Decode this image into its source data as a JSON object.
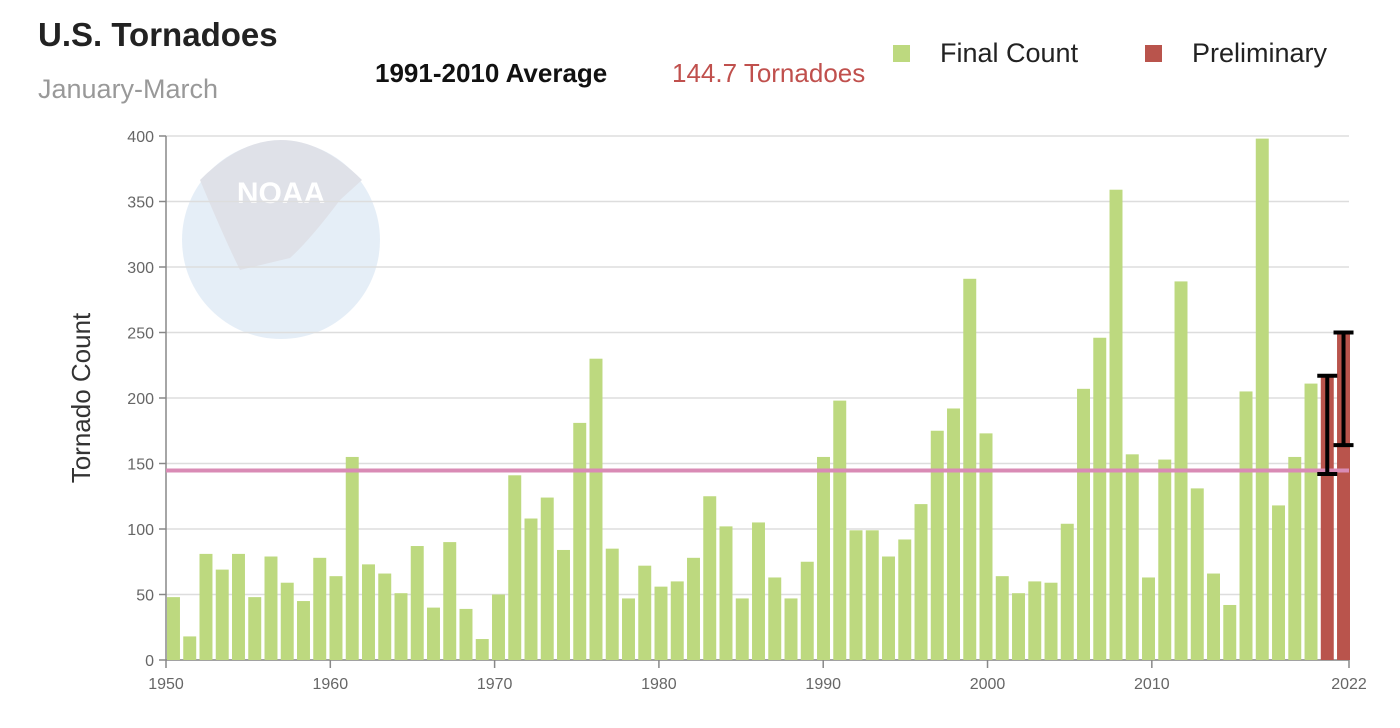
{
  "chart_data": {
    "type": "bar",
    "title": "U.S. Tornadoes",
    "subtitle": "January-March",
    "ylabel": "Tornado Count",
    "xlabel": "",
    "ylim": [
      0,
      400
    ],
    "yticks": [
      0,
      50,
      100,
      150,
      200,
      250,
      300,
      350,
      400
    ],
    "xticks": [
      "1950",
      "1960",
      "1970",
      "1980",
      "1990",
      "2000",
      "2010",
      "2022"
    ],
    "grid": true,
    "legend_placement": "top-right",
    "reference_line": {
      "label": "1991-2010 Average",
      "value": 144.7,
      "value_text": "144.7 Tornadoes",
      "color": "#d98bb5"
    },
    "series": [
      {
        "name": "Final Count",
        "color": "#bdd97f",
        "x": [
          1950,
          1951,
          1952,
          1953,
          1954,
          1955,
          1956,
          1957,
          1958,
          1959,
          1960,
          1961,
          1962,
          1963,
          1964,
          1965,
          1966,
          1967,
          1968,
          1969,
          1970,
          1971,
          1972,
          1973,
          1974,
          1975,
          1976,
          1977,
          1978,
          1979,
          1980,
          1981,
          1982,
          1983,
          1984,
          1985,
          1986,
          1987,
          1988,
          1989,
          1990,
          1991,
          1992,
          1993,
          1994,
          1995,
          1996,
          1997,
          1998,
          1999,
          2000,
          2001,
          2002,
          2003,
          2004,
          2005,
          2006,
          2007,
          2008,
          2009,
          2010,
          2011,
          2012,
          2013,
          2014,
          2015,
          2016,
          2017,
          2018,
          2019,
          2020
        ],
        "values": [
          48,
          18,
          81,
          69,
          81,
          48,
          79,
          59,
          45,
          78,
          64,
          155,
          73,
          66,
          51,
          87,
          40,
          90,
          39,
          16,
          50,
          141,
          108,
          124,
          84,
          181,
          230,
          85,
          47,
          72,
          56,
          60,
          78,
          125,
          102,
          47,
          105,
          63,
          47,
          75,
          155,
          198,
          99,
          99,
          79,
          92,
          119,
          175,
          192,
          291,
          173,
          64,
          51,
          60,
          59,
          104,
          207,
          246,
          359,
          157,
          63,
          153,
          289,
          131,
          66,
          42,
          205,
          398,
          118,
          155,
          211
        ]
      },
      {
        "name": "Preliminary",
        "color": "#b9544c",
        "x": [
          2021,
          2022
        ],
        "values": [
          217,
          250
        ],
        "error_range": [
          [
            142,
            217
          ],
          [
            164,
            250
          ]
        ]
      }
    ]
  }
}
